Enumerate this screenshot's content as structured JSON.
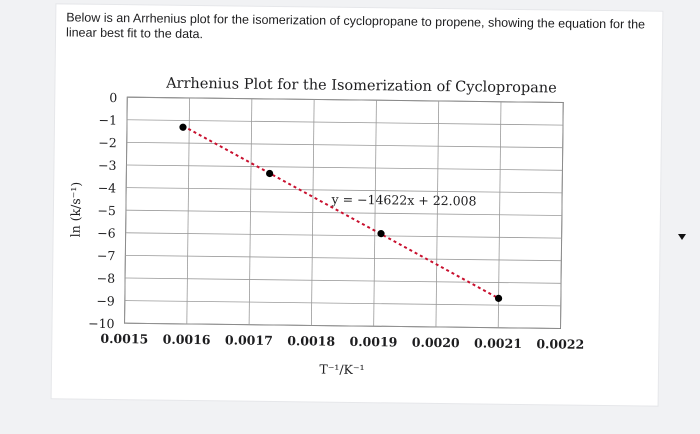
{
  "intro_text": "Below is an Arrhenius plot for the isomerization of cyclopropane to propene, showing the equation for the linear best fit to the data.",
  "ui": {
    "collapse_icon": "caret-down-icon"
  },
  "chart_data": {
    "type": "scatter",
    "title": "Arrhenius Plot for the Isomerization of Cyclopropane",
    "xlabel": "T⁻¹/K⁻¹",
    "ylabel": "ln (k/s⁻¹)",
    "xlim": [
      0.0015,
      0.0022
    ],
    "ylim": [
      -10,
      0
    ],
    "x_ticks": [
      0.0015,
      0.0016,
      0.0017,
      0.0018,
      0.0019,
      0.002,
      0.0021,
      0.0022
    ],
    "x_tick_labels": [
      "0.0015",
      "0.0016",
      "0.0017",
      "0.0018",
      "0.0019",
      "0.0020",
      "0.0021",
      "0.0022"
    ],
    "y_ticks": [
      0,
      -1,
      -2,
      -3,
      -4,
      -5,
      -6,
      -7,
      -8,
      -9,
      -10
    ],
    "y_tick_labels": [
      "0",
      "−1",
      "−2",
      "−3",
      "−4",
      "−5",
      "−6",
      "−7",
      "−8",
      "−9",
      "−10"
    ],
    "grid": true,
    "series": [
      {
        "points": [
          {
            "x": 0.00159,
            "y": -1.3
          },
          {
            "x": 0.00173,
            "y": -3.3
          },
          {
            "x": 0.00191,
            "y": -5.9
          },
          {
            "x": 0.0021,
            "y": -8.7
          }
        ],
        "color": "#000000"
      }
    ],
    "trendline": {
      "slope": -14622,
      "intercept": 22.008,
      "equation": "y = −14622x + 22.008",
      "color": "#c8102e",
      "style": "dashed"
    }
  }
}
